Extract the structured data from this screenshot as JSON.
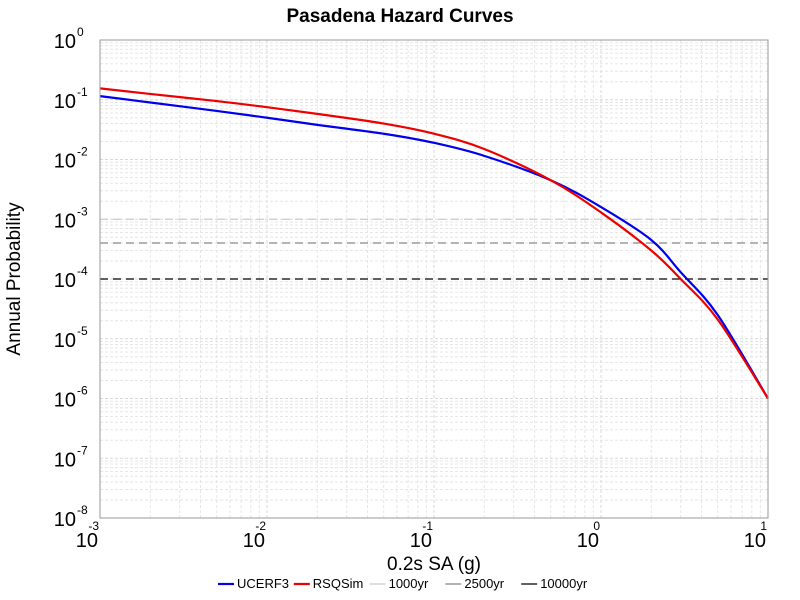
{
  "chart_data": {
    "type": "line",
    "title": "Pasadena Hazard Curves",
    "xlabel": "0.2s SA (g)",
    "ylabel": "Annual Probability",
    "x_scale": "log",
    "y_scale": "log",
    "xlim": [
      0.001,
      10
    ],
    "ylim": [
      1e-08,
      1
    ],
    "grid": true,
    "legend_placement": "bottom",
    "x_ticks": [
      {
        "base": "10",
        "exp": "-3",
        "value": 0.001
      },
      {
        "base": "10",
        "exp": "-2",
        "value": 0.01
      },
      {
        "base": "10",
        "exp": "-1",
        "value": 0.1
      },
      {
        "base": "10",
        "exp": "0",
        "value": 1
      },
      {
        "base": "10",
        "exp": "1",
        "value": 10
      }
    ],
    "y_ticks": [
      {
        "base": "10",
        "exp": "0",
        "value": 1
      },
      {
        "base": "10",
        "exp": "-1",
        "value": 0.1
      },
      {
        "base": "10",
        "exp": "-2",
        "value": 0.01
      },
      {
        "base": "10",
        "exp": "-3",
        "value": 0.001
      },
      {
        "base": "10",
        "exp": "-4",
        "value": 0.0001
      },
      {
        "base": "10",
        "exp": "-5",
        "value": 1e-05
      },
      {
        "base": "10",
        "exp": "-6",
        "value": 1e-06
      },
      {
        "base": "10",
        "exp": "-7",
        "value": 1e-07
      },
      {
        "base": "10",
        "exp": "-8",
        "value": 1e-08
      }
    ],
    "series": [
      {
        "name": "UCERF3",
        "color": "#0000ee",
        "x": [
          0.001,
          0.002,
          0.005,
          0.01,
          0.02,
          0.05,
          0.1,
          0.2,
          0.5,
          1,
          2,
          3,
          5,
          10
        ],
        "y": [
          0.115,
          0.09,
          0.065,
          0.05,
          0.038,
          0.027,
          0.019,
          0.0115,
          0.0045,
          0.0016,
          0.00045,
          0.00013,
          2.5e-05,
          1e-06
        ]
      },
      {
        "name": "RSQSim",
        "color": "#ee0000",
        "x": [
          0.001,
          0.002,
          0.005,
          0.01,
          0.02,
          0.05,
          0.1,
          0.2,
          0.5,
          1,
          2,
          3,
          5,
          10
        ],
        "y": [
          0.155,
          0.125,
          0.095,
          0.075,
          0.058,
          0.04,
          0.027,
          0.015,
          0.0045,
          0.0013,
          0.0003,
          0.0001,
          2.1e-05,
          1e-06
        ]
      }
    ],
    "reference_lines": [
      {
        "name": "1000yr",
        "y": 0.001,
        "color": "#cccccc"
      },
      {
        "name": "2500yr",
        "y": 0.0004,
        "color": "#888888"
      },
      {
        "name": "10000yr",
        "y": 0.0001,
        "color": "#000000"
      }
    ]
  }
}
